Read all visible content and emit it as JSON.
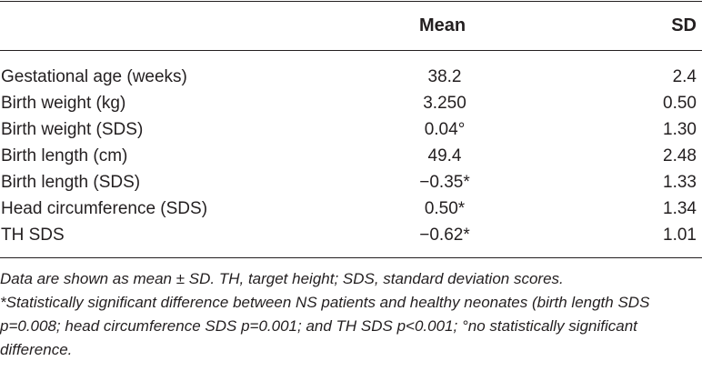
{
  "table": {
    "columns": [
      "",
      "Mean",
      "SD"
    ],
    "rows": [
      {
        "label": "Gestational age (weeks)",
        "mean": "38.2",
        "sd": "2.4"
      },
      {
        "label": "Birth weight (kg)",
        "mean": "3.250",
        "sd": "0.50"
      },
      {
        "label": "Birth weight (SDS)",
        "mean": "0.04°",
        "sd": "1.30"
      },
      {
        "label": "Birth length (cm)",
        "mean": "49.4",
        "sd": "2.48"
      },
      {
        "label": "Birth length (SDS)",
        "mean": "−0.35*",
        "sd": "1.33"
      },
      {
        "label": "Head circumference (SDS)",
        "mean": "0.50*",
        "sd": "1.34"
      },
      {
        "label": "TH SDS",
        "mean": "−0.62*",
        "sd": "1.01"
      }
    ]
  },
  "footnotes": {
    "line1": "Data are shown as mean ± SD. TH, target height; SDS, standard deviation scores.",
    "line2": "*Statistically significant difference between NS patients and healthy neonates (birth length SDS p=0.008; head circumference SDS p=0.001; and TH SDS p<0.001; °no statistically significant difference."
  }
}
